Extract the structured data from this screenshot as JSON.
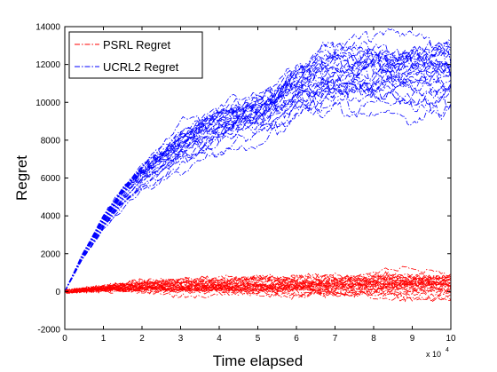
{
  "chart_data": {
    "type": "line",
    "title": "",
    "xlabel": "Time elapsed",
    "ylabel": "Regret",
    "x_multiplier_label": "x 10",
    "x_multiplier_exp": "4",
    "xlim": [
      0,
      10
    ],
    "ylim": [
      -2000,
      14000
    ],
    "xticks": [
      "0",
      "1",
      "2",
      "3",
      "4",
      "5",
      "6",
      "7",
      "8",
      "9",
      "10"
    ],
    "yticks": [
      "-2000",
      "0",
      "2000",
      "4000",
      "6000",
      "8000",
      "10000",
      "12000",
      "14000"
    ],
    "grid": false,
    "legend_position": "top-left",
    "line_style": "dash-dot",
    "series": [
      {
        "name": "PSRL Regret",
        "color": "#ff0000",
        "num_runs": 30,
        "mean": {
          "x": [
            0,
            1,
            2,
            4,
            6,
            8,
            10
          ],
          "y": [
            0,
            150,
            250,
            300,
            320,
            330,
            340
          ]
        },
        "spread": {
          "x": [
            0,
            2,
            5,
            10
          ],
          "y": [
            0,
            200,
            350,
            450
          ]
        }
      },
      {
        "name": "UCRL2 Regret",
        "color": "#0000ff",
        "num_runs": 30,
        "mean": {
          "x": [
            0,
            0.5,
            1,
            1.5,
            2,
            2.5,
            3,
            4,
            5,
            5.5,
            6,
            6.5,
            7,
            8,
            9,
            10
          ],
          "y": [
            0,
            2000,
            3600,
            5000,
            6000,
            6700,
            7500,
            8600,
            9300,
            9700,
            10500,
            11000,
            11200,
            11300,
            11350,
            11400
          ]
        },
        "spread": {
          "x": [
            0,
            1,
            2,
            3,
            5,
            6.5,
            10
          ],
          "y": [
            0,
            300,
            600,
            900,
            1100,
            1300,
            1300
          ]
        }
      }
    ]
  }
}
